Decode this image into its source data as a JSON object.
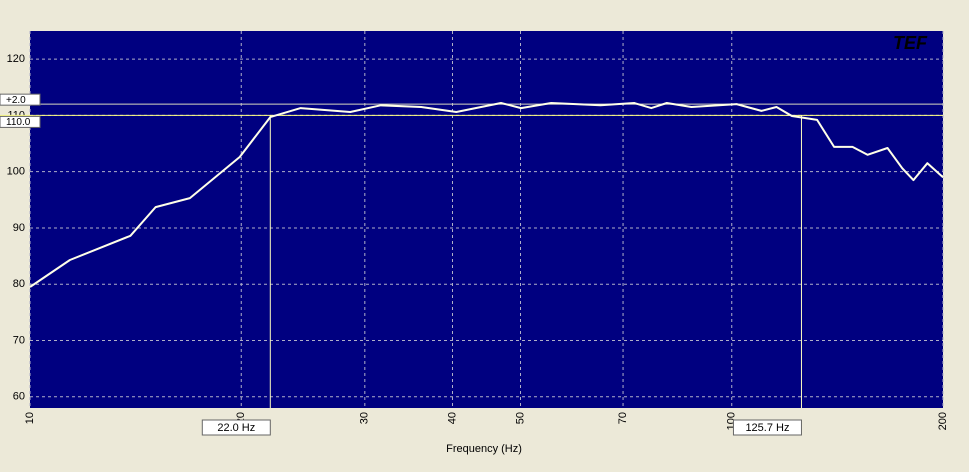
{
  "chart_data": {
    "type": "line",
    "logo": "TEF",
    "x_label": "Frequency (Hz)",
    "x": [
      10,
      11.4,
      13.9,
      15.1,
      16.9,
      19.9,
      22.0,
      24.3,
      28.6,
      31.6,
      36.1,
      40.5,
      46.9,
      50.1,
      55.3,
      65.0,
      72.6,
      76.8,
      80.8,
      87.6,
      101.6,
      110.2,
      115.8,
      121.8,
      132.3,
      139.9,
      148.6,
      156.1,
      166.7,
      175.0,
      181.5,
      190.0,
      200
    ],
    "values": [
      79.5,
      84.3,
      88.6,
      93.7,
      95.3,
      102.6,
      109.7,
      111.3,
      110.6,
      111.8,
      111.5,
      110.6,
      112.2,
      111.3,
      112.2,
      111.8,
      112.2,
      111.3,
      112.2,
      111.5,
      112.0,
      110.8,
      111.5,
      109.9,
      109.2,
      104.4,
      104.4,
      103.0,
      104.2,
      100.6,
      98.5,
      101.5,
      99.0
    ],
    "color": "#ffffe8",
    "xlim": [
      10,
      200
    ],
    "ylim": [
      58,
      125
    ],
    "xlog": true,
    "xticks": [
      10,
      20,
      30,
      40,
      50,
      70,
      100,
      200
    ],
    "yticks": [
      60,
      70,
      80,
      90,
      100,
      110,
      120
    ],
    "grid": true,
    "reference_lines": [
      {
        "value": 112,
        "label": "+2.0"
      },
      {
        "value": 110,
        "label": "110.0"
      }
    ],
    "frequency_markers": [
      {
        "value": 22.0,
        "label": "22.0 Hz"
      },
      {
        "value": 125.7,
        "label": "125.7 Hz"
      }
    ]
  }
}
